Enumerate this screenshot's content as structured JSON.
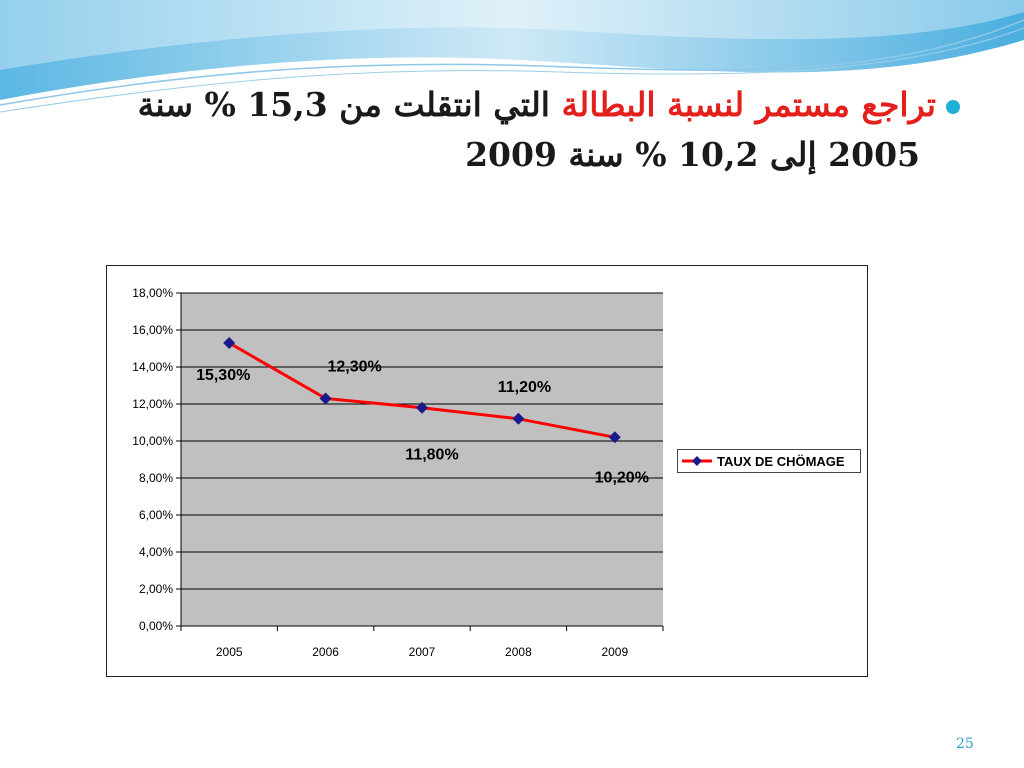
{
  "slide": {
    "title_line1_red": "تراجع مستمر لنسبة البطالة",
    "title_line1_black": "التي انتقلت من 15,3 % سنة",
    "title_line2": "2005 إلى 10,2 % سنة 2009",
    "page_number": "25",
    "bullet_color": "#1fb0d8",
    "accent_red": "#e3201b"
  },
  "chart_data": {
    "type": "line",
    "title": "",
    "xlabel": "",
    "ylabel": "",
    "categories": [
      "2005",
      "2006",
      "2007",
      "2008",
      "2009"
    ],
    "y_ticks": [
      "0,00%",
      "2,00%",
      "4,00%",
      "6,00%",
      "8,00%",
      "10,00%",
      "12,00%",
      "14,00%",
      "16,00%",
      "18,00%"
    ],
    "ylim": [
      0,
      18
    ],
    "grid": true,
    "plot_background": "#c0c0c0",
    "legend_position": "right",
    "series": [
      {
        "name": "TAUX DE CHÖMAGE",
        "color": "#ff0000",
        "marker_color": "#1a1a8c",
        "values": [
          15.3,
          12.3,
          11.8,
          11.2,
          10.2
        ],
        "labels": [
          "15,30%",
          "12,30%",
          "11,80%",
          "11,20%",
          "10,20%"
        ]
      }
    ]
  }
}
